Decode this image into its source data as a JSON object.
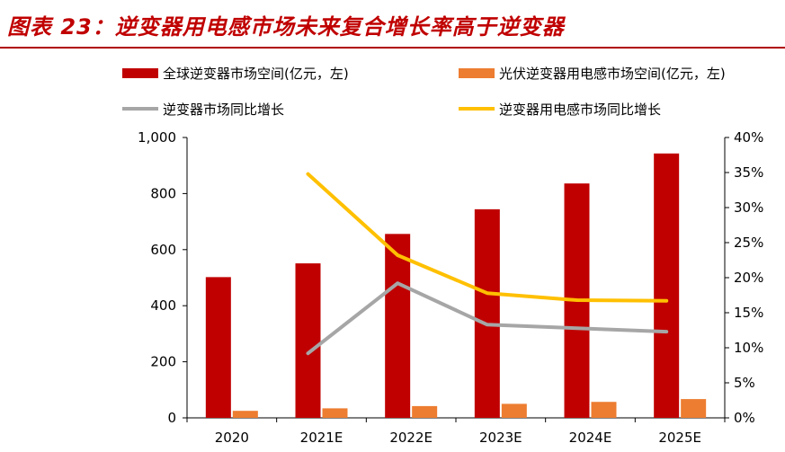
{
  "title": "图表 23：逆变器用电感市场未来复合增长率高于逆变器",
  "colors": {
    "bar_primary": "#c00000",
    "bar_secondary": "#ed7d31",
    "line_gray": "#a6a6a6",
    "line_yellow": "#ffc000",
    "title": "#c00000"
  },
  "chart_data": {
    "type": "bar",
    "categories": [
      "2020",
      "2021E",
      "2022E",
      "2023E",
      "2024E",
      "2025E"
    ],
    "series": [
      {
        "name": "全球逆变器市场空间(亿元，左)",
        "type": "bar",
        "axis": "left",
        "values": [
          502,
          551,
          656,
          744,
          836,
          943
        ]
      },
      {
        "name": "光伏逆变器用电感市场空间(亿元，左)",
        "type": "bar",
        "axis": "left",
        "values": [
          25,
          34,
          42,
          50,
          57,
          67
        ]
      },
      {
        "name": "逆变器市场同比增长",
        "type": "line",
        "axis": "right",
        "values": [
          null,
          0.092,
          0.192,
          0.133,
          0.128,
          0.123
        ]
      },
      {
        "name": "逆变器用电感市场同比增长",
        "type": "line",
        "axis": "right",
        "values": [
          null,
          0.348,
          0.232,
          0.178,
          0.168,
          0.167
        ]
      }
    ],
    "y_left": {
      "min": 0,
      "max": 1000,
      "ticks": [
        "0",
        "200",
        "400",
        "600",
        "800",
        "1,000"
      ]
    },
    "y_right": {
      "min": 0,
      "max": 0.4,
      "ticks": [
        "0%",
        "5%",
        "10%",
        "15%",
        "20%",
        "25%",
        "30%",
        "35%",
        "40%"
      ]
    },
    "legend_position": "top"
  }
}
